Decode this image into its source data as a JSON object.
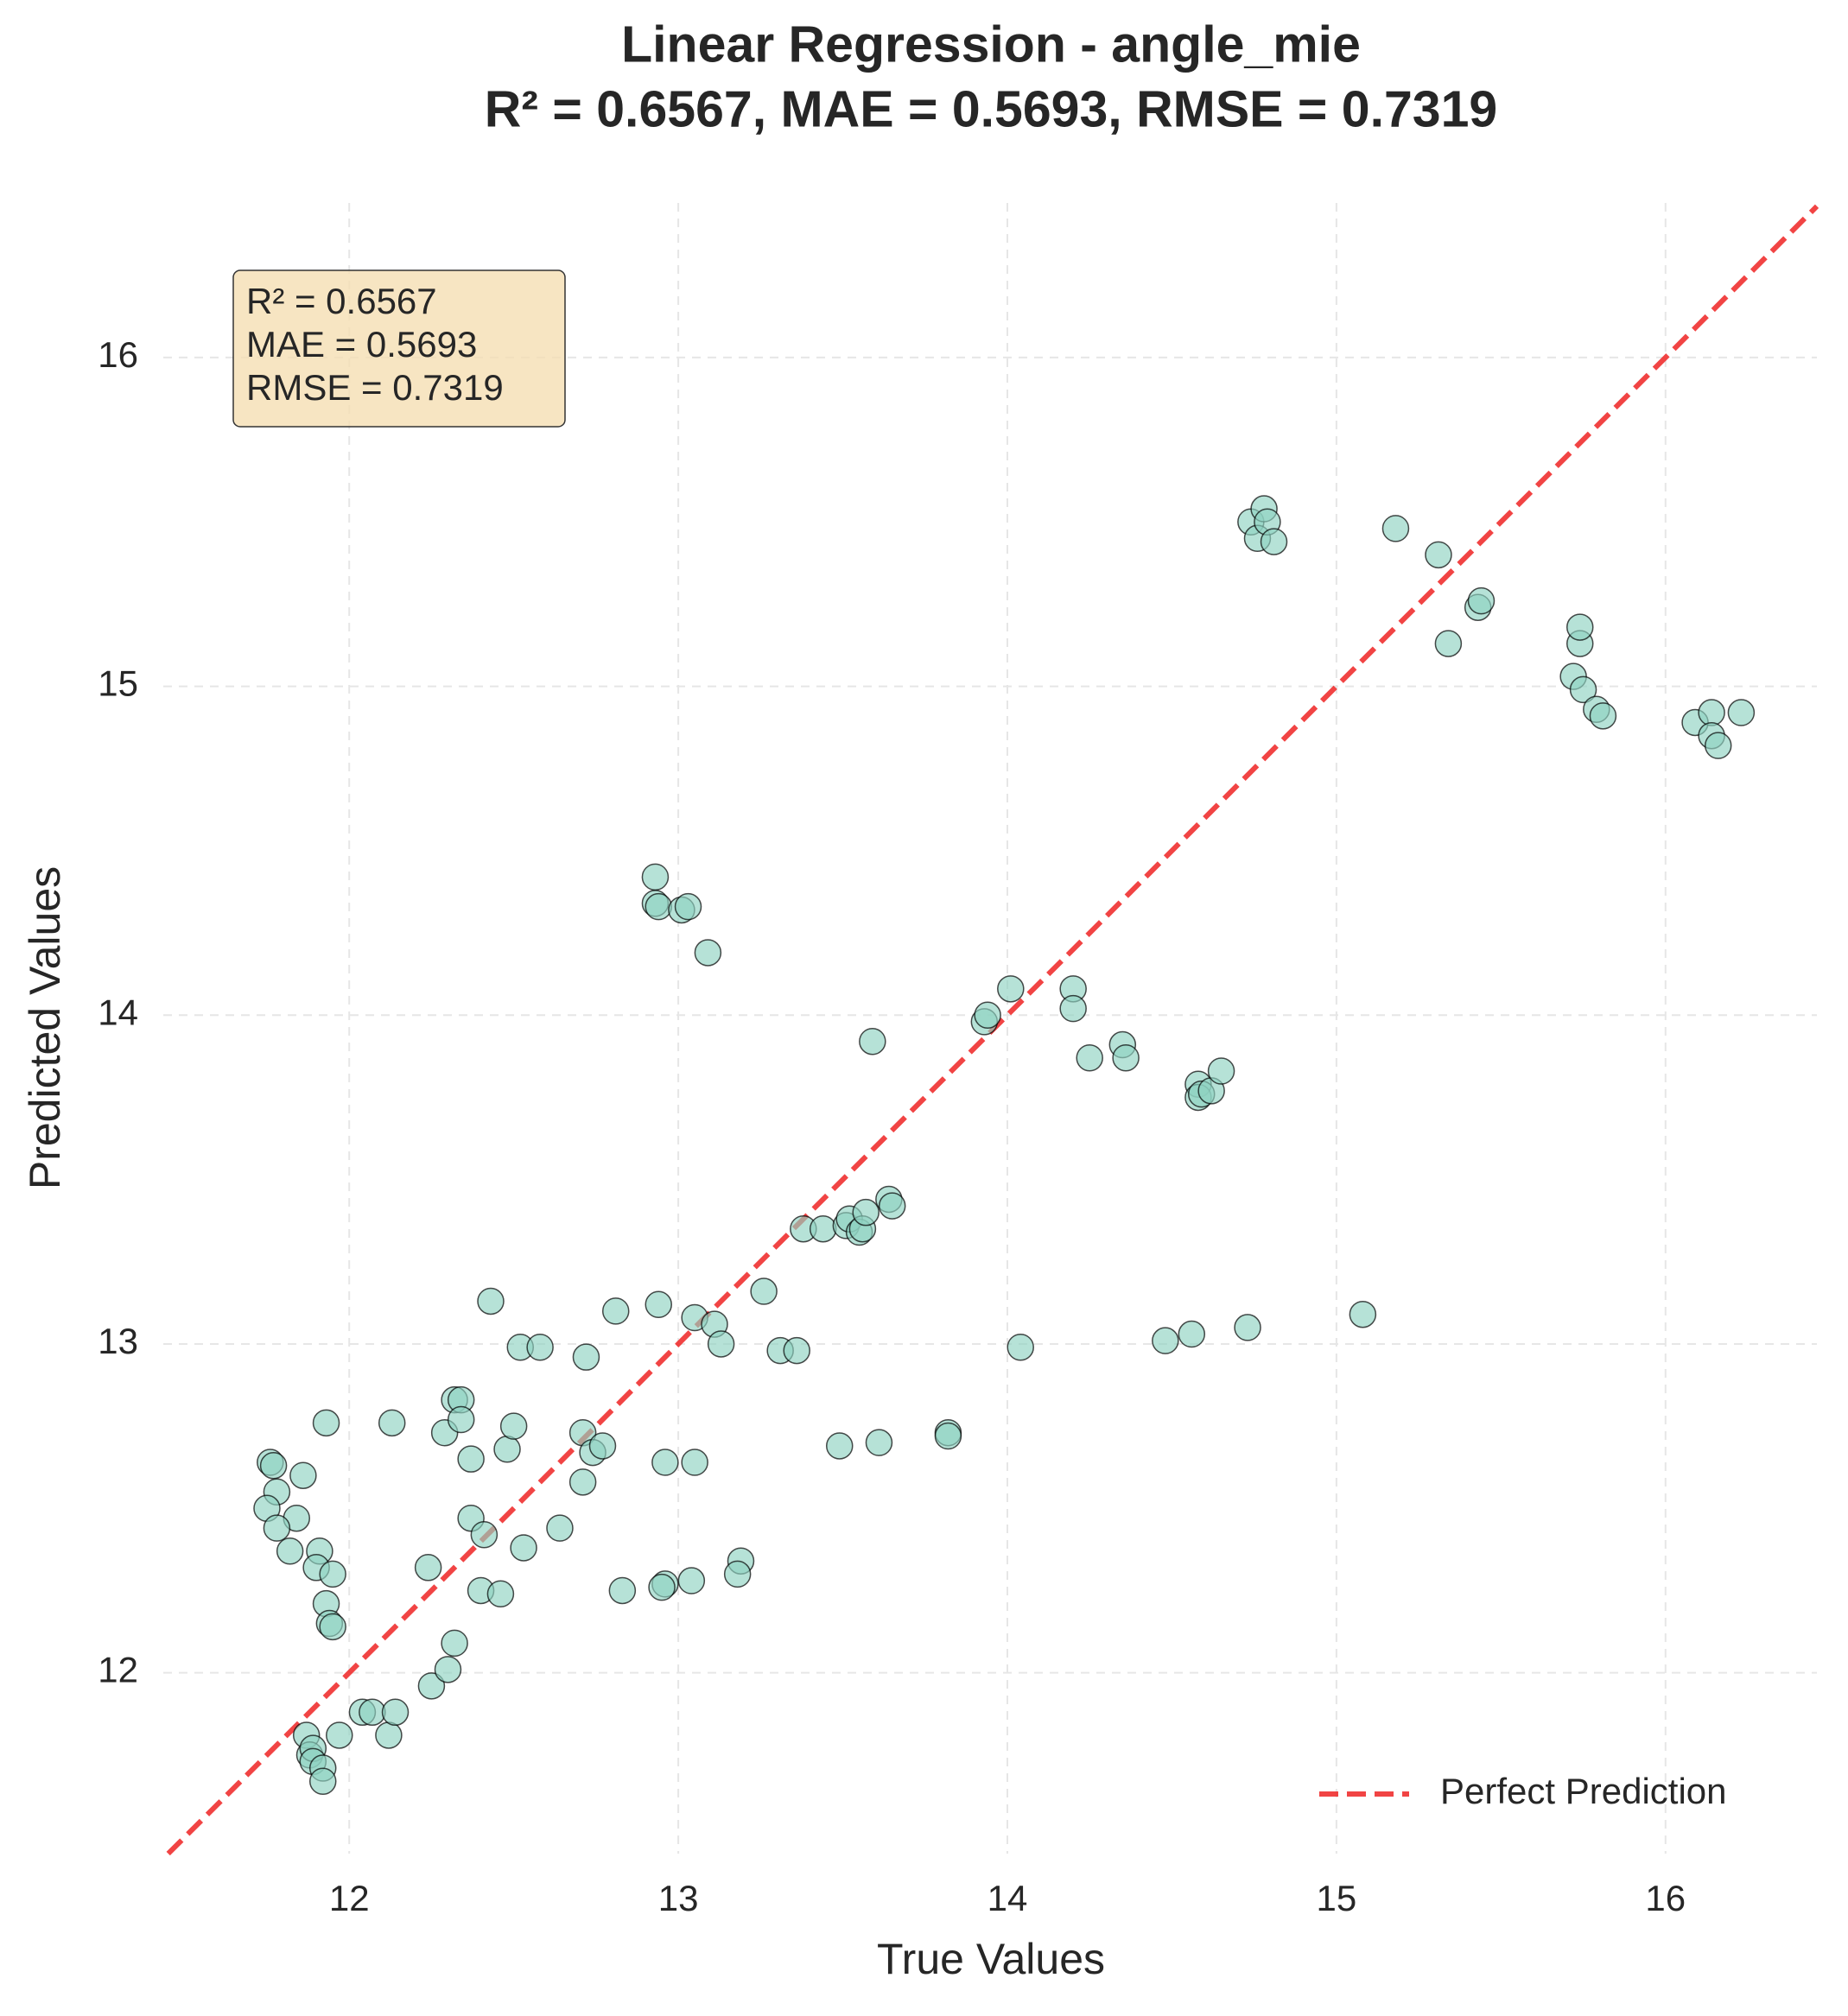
{
  "chart_data": {
    "type": "scatter",
    "title": "Linear Regression - angle_mie",
    "subtitle": "R² = 0.6567, MAE = 0.5693, RMSE = 0.7319",
    "xlabel": "True Values",
    "ylabel": "Predicted Values",
    "annotation": [
      "R² = 0.6567",
      "MAE = 0.5693",
      "RMSE = 0.7319"
    ],
    "xlim": [
      11.435,
      16.46
    ],
    "ylim": [
      11.45,
      16.47
    ],
    "xticks": [
      12,
      13,
      14,
      15,
      16
    ],
    "yticks": [
      12,
      13,
      14,
      15,
      16
    ],
    "grid": true,
    "color": "#8fd3c2",
    "reference_line": {
      "name": "Perfect Prediction",
      "color": "#f03030"
    },
    "legend": "lower right",
    "x": [
      11.76,
      11.77,
      11.86,
      11.93,
      11.78,
      11.75,
      11.84,
      11.78,
      11.82,
      11.91,
      11.9,
      11.95,
      11.93,
      11.94,
      11.95,
      11.87,
      11.97,
      11.88,
      11.89,
      11.89,
      11.92,
      11.92,
      12.04,
      12.07,
      12.12,
      12.14,
      12.13,
      12.25,
      12.3,
      12.32,
      12.24,
      12.29,
      12.32,
      12.34,
      12.34,
      12.37,
      12.37,
      12.41,
      12.4,
      12.46,
      12.43,
      12.48,
      12.5,
      12.52,
      12.53,
      12.58,
      12.64,
      12.72,
      12.71,
      12.71,
      12.74,
      12.77,
      12.81,
      12.83,
      12.93,
      12.93,
      12.94,
      12.94,
      12.96,
      12.95,
      12.96,
      13.01,
      13.03,
      13.09,
      13.05,
      13.04,
      13.05,
      13.11,
      13.13,
      13.19,
      13.18,
      13.26,
      13.31,
      13.36,
      13.38,
      13.44,
      13.49,
      13.51,
      13.52,
      13.55,
      13.56,
      13.57,
      13.59,
      13.61,
      13.64,
      13.65,
      13.82,
      13.82,
      13.93,
      13.94,
      14.01,
      14.04,
      14.2,
      14.2,
      14.25,
      14.35,
      14.36,
      14.48,
      14.56,
      14.58,
      14.58,
      14.59,
      14.62,
      14.65,
      14.73,
      14.74,
      14.76,
      14.78,
      14.79,
      14.81,
      15.08,
      15.18,
      15.31,
      15.34,
      15.43,
      15.44,
      15.72,
      15.74,
      15.74,
      15.75,
      15.79,
      15.81,
      16.09,
      16.14,
      16.14,
      16.16,
      16.23
    ],
    "values": [
      12.64,
      12.63,
      12.6,
      12.76,
      12.55,
      12.5,
      12.47,
      12.44,
      12.37,
      12.37,
      12.32,
      12.3,
      12.21,
      12.15,
      12.14,
      11.81,
      11.81,
      11.75,
      11.77,
      11.73,
      11.71,
      11.67,
      11.88,
      11.88,
      11.81,
      11.88,
      12.76,
      11.96,
      12.01,
      12.09,
      12.32,
      12.73,
      12.83,
      12.83,
      12.77,
      12.65,
      12.47,
      12.42,
      12.25,
      12.24,
      13.13,
      12.68,
      12.75,
      12.99,
      12.38,
      12.99,
      12.44,
      12.96,
      12.73,
      12.58,
      12.67,
      12.69,
      13.1,
      12.25,
      14.42,
      14.34,
      14.33,
      13.12,
      12.27,
      12.26,
      12.64,
      14.32,
      14.33,
      14.19,
      12.64,
      12.28,
      13.08,
      13.06,
      13.0,
      12.34,
      12.3,
      13.16,
      12.98,
      12.98,
      13.35,
      13.35,
      12.69,
      13.36,
      13.38,
      13.34,
      13.35,
      13.4,
      13.92,
      12.7,
      13.44,
      13.42,
      12.73,
      12.72,
      13.98,
      14.0,
      14.08,
      12.99,
      14.08,
      14.02,
      13.87,
      13.91,
      13.87,
      13.01,
      13.03,
      13.79,
      13.75,
      13.76,
      13.77,
      13.83,
      13.05,
      15.5,
      15.45,
      15.54,
      15.5,
      15.44,
      13.09,
      15.48,
      15.4,
      15.13,
      15.24,
      15.26,
      15.03,
      15.13,
      15.18,
      14.99,
      14.93,
      14.91,
      14.89,
      14.92,
      14.85,
      14.82,
      14.92
    ]
  }
}
